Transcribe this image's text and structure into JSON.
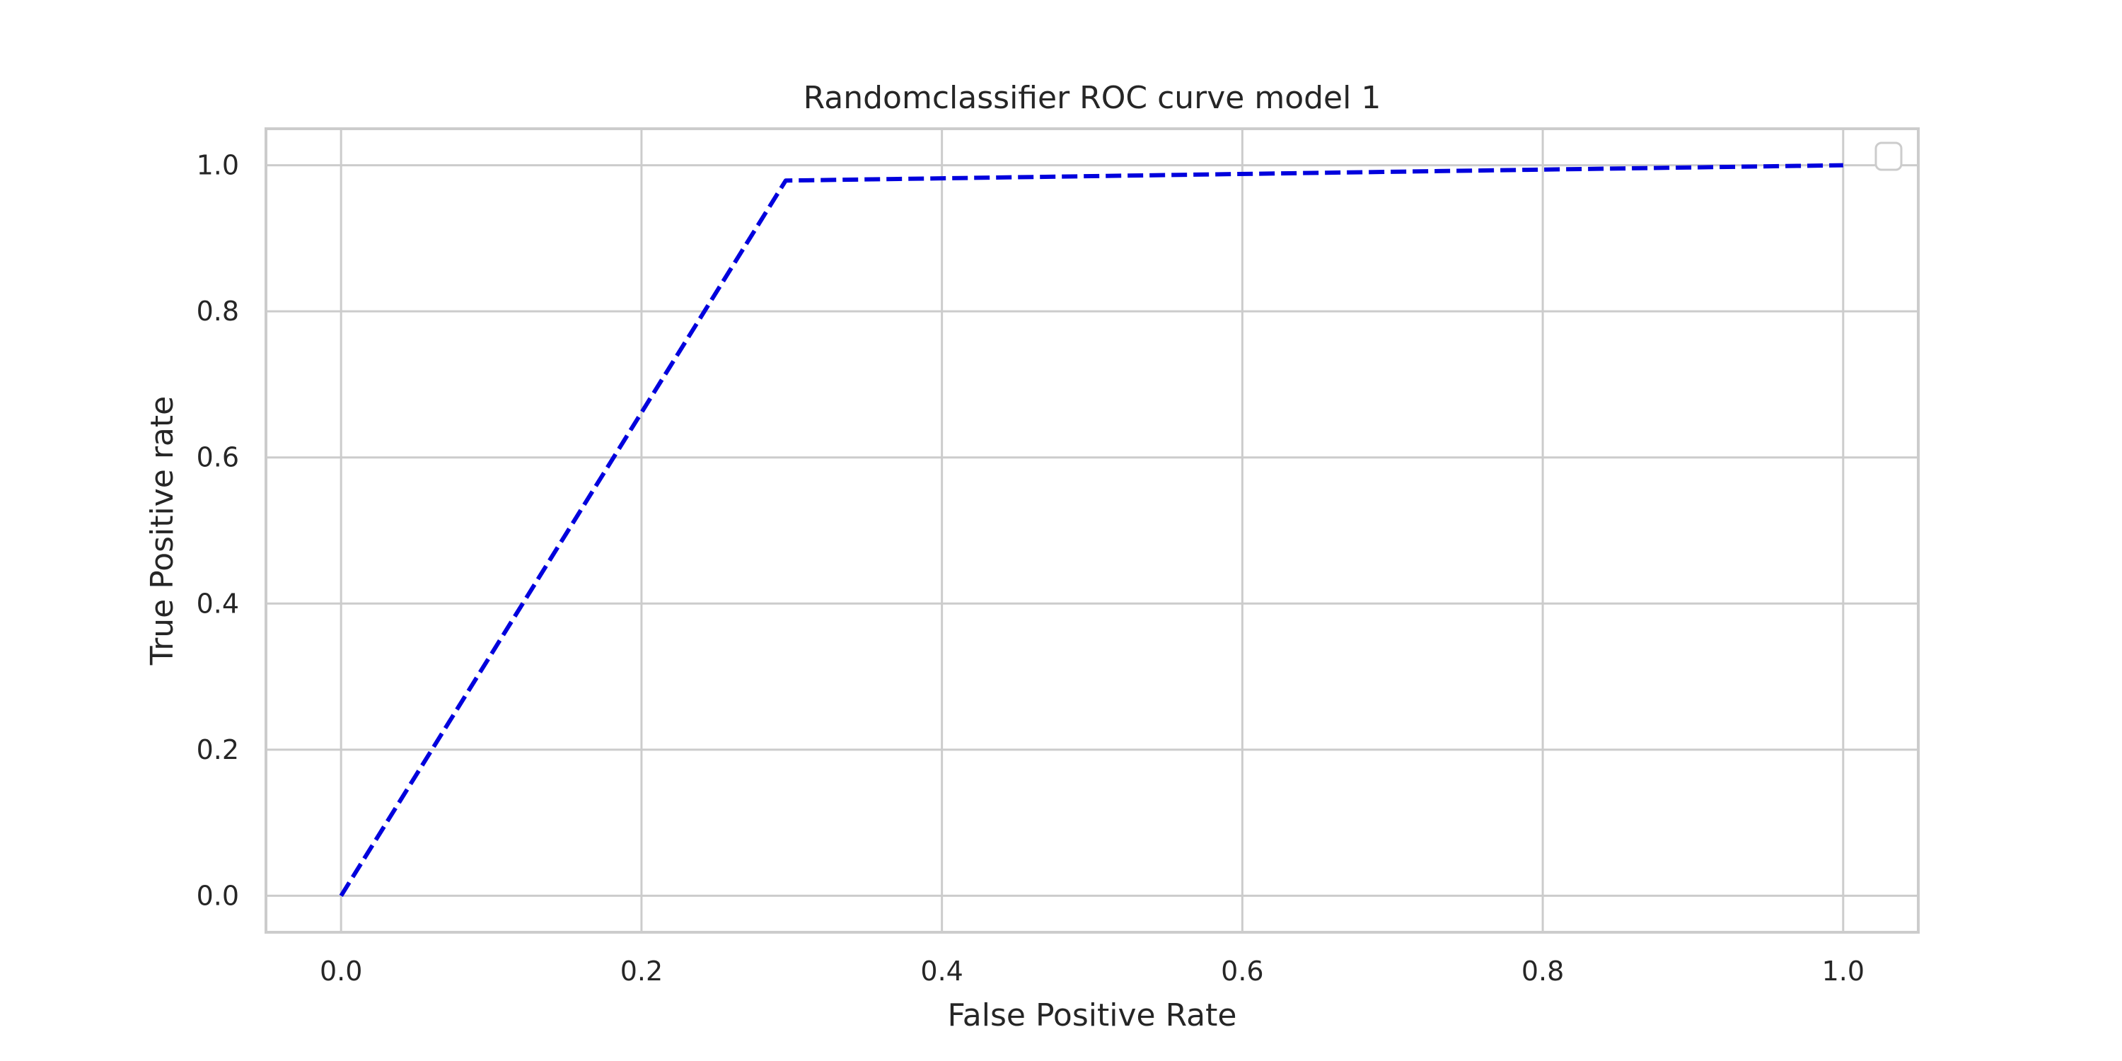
{
  "chart_data": {
    "type": "line",
    "title": "Randomclassifier ROC curve model 1",
    "xlabel": "False Positive Rate",
    "ylabel": "True Positive rate",
    "xlim": [
      -0.05,
      1.05
    ],
    "ylim": [
      -0.05,
      1.05
    ],
    "xticks": [
      0.0,
      0.2,
      0.4,
      0.6,
      0.8,
      1.0
    ],
    "yticks": [
      0.0,
      0.2,
      0.4,
      0.6,
      0.8,
      1.0
    ],
    "xtick_labels": [
      "0.0",
      "0.2",
      "0.4",
      "0.6",
      "0.8",
      "1.0"
    ],
    "ytick_labels": [
      "0.0",
      "0.2",
      "0.4",
      "0.6",
      "0.8",
      "1.0"
    ],
    "grid": true,
    "legend": {
      "placement": "upper-right",
      "entries": []
    },
    "series": [
      {
        "x": [
          0.0,
          0.296,
          1.0
        ],
        "y": [
          0.0,
          0.979,
          1.0
        ],
        "color": "#0000dd",
        "line_style": "dashed"
      }
    ]
  }
}
